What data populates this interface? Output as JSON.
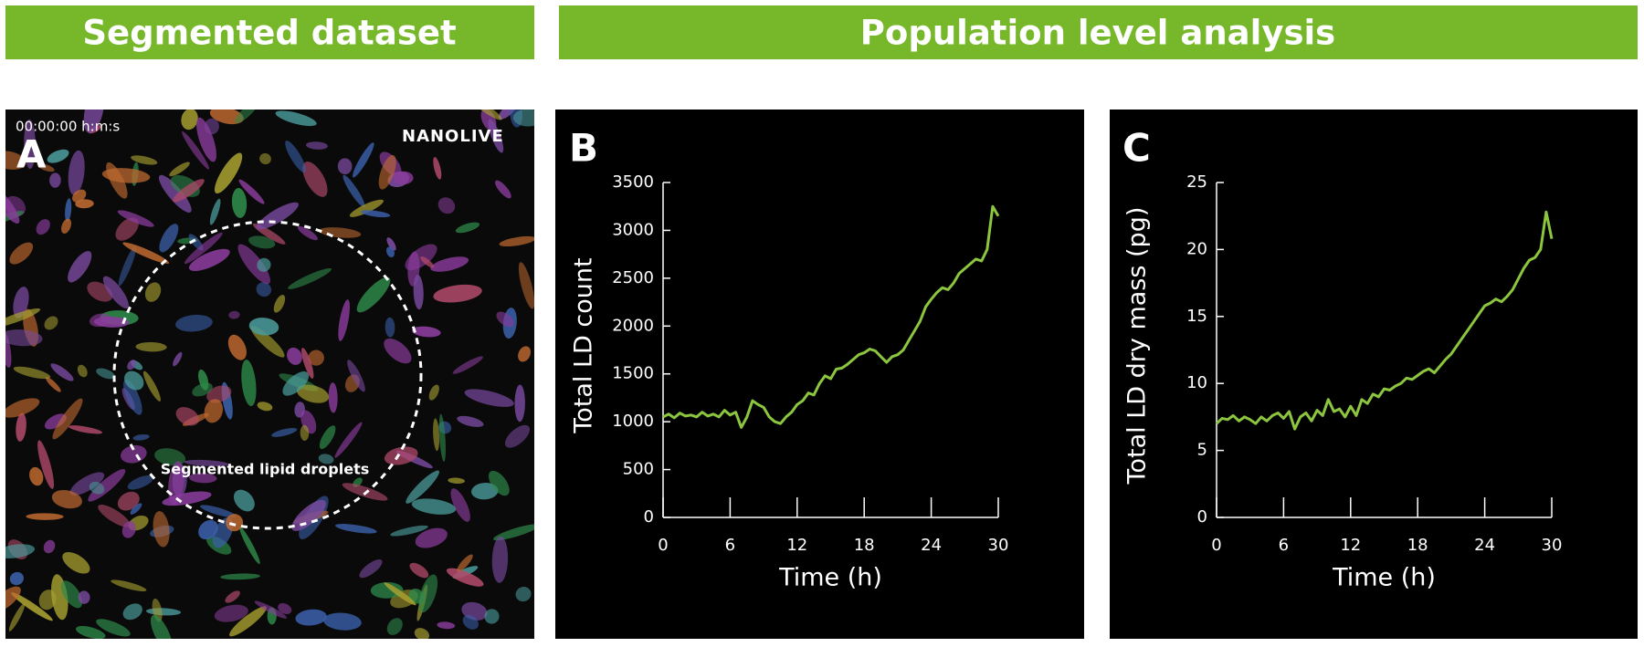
{
  "headers": {
    "left": "Segmented dataset",
    "right": "Population level analysis"
  },
  "panel_a": {
    "label": "A",
    "timestamp": "00:00:00  h:m:s",
    "brand": "NANOLIVE",
    "annotation": "Segmented lipid droplets"
  },
  "chart_data": [
    {
      "type": "line",
      "panel": "B",
      "xlabel": "Time (h)",
      "ylabel": "Total LD count",
      "color": "#8cc63f",
      "xlim": [
        0,
        30
      ],
      "xticks": [
        0,
        6,
        12,
        18,
        24,
        30
      ],
      "ylim": [
        0,
        3500
      ],
      "yticks": [
        0,
        500,
        1000,
        1500,
        2000,
        2500,
        3000,
        3500
      ],
      "x": [
        0,
        0.5,
        1,
        1.5,
        2,
        2.5,
        3,
        3.5,
        4,
        4.5,
        5,
        5.5,
        6,
        6.5,
        7,
        7.5,
        8,
        8.5,
        9,
        9.5,
        10,
        10.5,
        11,
        11.5,
        12,
        12.5,
        13,
        13.5,
        14,
        14.5,
        15,
        15.5,
        16,
        16.5,
        17,
        17.5,
        18,
        18.5,
        19,
        19.5,
        20,
        20.5,
        21,
        21.5,
        22,
        22.5,
        23,
        23.5,
        24,
        24.5,
        25,
        25.5,
        26,
        26.5,
        27,
        27.5,
        28,
        28.5,
        29,
        29.5,
        30
      ],
      "values": [
        1050,
        1080,
        1040,
        1090,
        1060,
        1070,
        1050,
        1100,
        1060,
        1080,
        1050,
        1120,
        1070,
        1100,
        940,
        1050,
        1220,
        1180,
        1150,
        1050,
        1000,
        980,
        1050,
        1100,
        1180,
        1220,
        1300,
        1280,
        1400,
        1480,
        1450,
        1550,
        1560,
        1600,
        1650,
        1700,
        1720,
        1760,
        1740,
        1680,
        1620,
        1680,
        1700,
        1750,
        1850,
        1950,
        2050,
        2200,
        2280,
        2350,
        2400,
        2380,
        2450,
        2550,
        2600,
        2650,
        2700,
        2680,
        2800,
        3250,
        3150
      ]
    },
    {
      "type": "line",
      "panel": "C",
      "xlabel": "Time (h)",
      "ylabel": "Total LD dry mass (pg)",
      "color": "#8cc63f",
      "xlim": [
        0,
        30
      ],
      "xticks": [
        0,
        6,
        12,
        18,
        24,
        30
      ],
      "ylim": [
        0,
        25
      ],
      "yticks": [
        0,
        5,
        10,
        15,
        20,
        25
      ],
      "x": [
        0,
        0.5,
        1,
        1.5,
        2,
        2.5,
        3,
        3.5,
        4,
        4.5,
        5,
        5.5,
        6,
        6.5,
        7,
        7.5,
        8,
        8.5,
        9,
        9.5,
        10,
        10.5,
        11,
        11.5,
        12,
        12.5,
        13,
        13.5,
        14,
        14.5,
        15,
        15.5,
        16,
        16.5,
        17,
        17.5,
        18,
        18.5,
        19,
        19.5,
        20,
        20.5,
        21,
        21.5,
        22,
        22.5,
        23,
        23.5,
        24,
        24.5,
        25,
        25.5,
        26,
        26.5,
        27,
        27.5,
        28,
        28.5,
        29,
        29.5,
        30
      ],
      "values": [
        7.0,
        7.4,
        7.3,
        7.6,
        7.2,
        7.5,
        7.3,
        7.0,
        7.5,
        7.2,
        7.6,
        7.8,
        7.4,
        7.9,
        6.6,
        7.5,
        7.8,
        7.2,
        8.0,
        7.6,
        8.8,
        7.9,
        8.1,
        7.5,
        8.3,
        7.6,
        8.8,
        8.5,
        9.2,
        9.0,
        9.6,
        9.5,
        9.8,
        10.0,
        10.4,
        10.3,
        10.6,
        10.9,
        11.1,
        10.8,
        11.3,
        11.8,
        12.2,
        12.8,
        13.4,
        14.0,
        14.6,
        15.2,
        15.8,
        16.0,
        16.3,
        16.1,
        16.5,
        17.0,
        17.8,
        18.6,
        19.2,
        19.4,
        20.0,
        22.8,
        20.8
      ]
    }
  ]
}
